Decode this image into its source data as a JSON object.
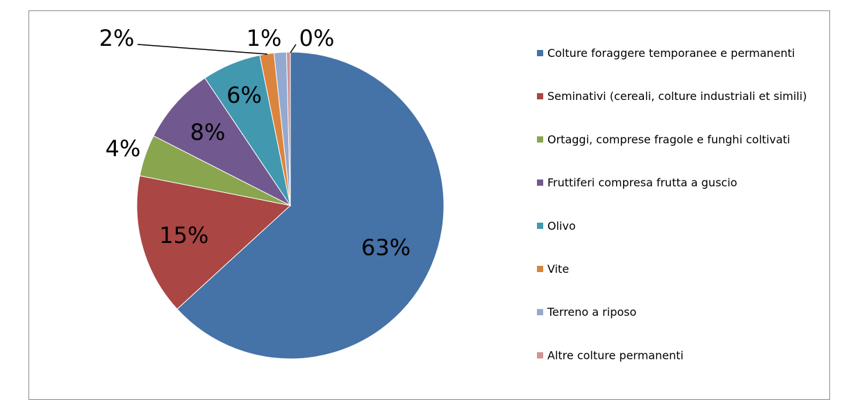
{
  "chart_data": {
    "type": "pie",
    "title": "",
    "categories": [
      "Colture foraggere temporanee e permanenti",
      "Seminativi (cereali, colture industriali et simili)",
      "Ortaggi, comprese fragole e funghi coltivati",
      "Fruttiferi compresa frutta a guscio",
      "Olivo",
      "Vite",
      "Terreno a riposo",
      "Altre colture permanenti"
    ],
    "values": [
      63.2,
      14.9,
      4.4,
      8.1,
      6.2,
      1.5,
      1.3,
      0.4
    ],
    "data_labels": [
      "63%",
      "15%",
      "4%",
      "8%",
      "6%",
      "2%",
      "1%",
      "0%"
    ],
    "colors": [
      "#4572a7",
      "#aa4643",
      "#89a54e",
      "#71588f",
      "#4198af",
      "#db843d",
      "#93a9cf",
      "#d19392"
    ],
    "legend": "right"
  }
}
